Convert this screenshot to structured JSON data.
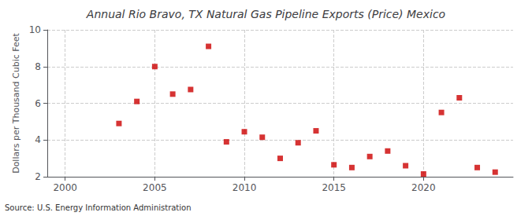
{
  "chart_data": {
    "type": "scatter",
    "title": "Annual Rio Bravo, TX Natural Gas Pipeline Exports (Price) Mexico",
    "ylabel": "Dollars per Thousand Cubic Feet",
    "source": "Source: U.S. Energy Information Administration",
    "x": [
      2003,
      2004,
      2005,
      2006,
      2007,
      2008,
      2009,
      2010,
      2011,
      2012,
      2013,
      2014,
      2015,
      2016,
      2017,
      2018,
      2019,
      2020,
      2021,
      2022,
      2023,
      2024
    ],
    "values": [
      4.9,
      6.1,
      8.0,
      6.5,
      6.75,
      9.1,
      3.9,
      4.45,
      4.15,
      3.0,
      3.85,
      4.5,
      2.65,
      2.5,
      3.1,
      3.4,
      2.6,
      2.15,
      5.5,
      6.3,
      2.5,
      2.25
    ],
    "color": "#cc0000",
    "marker": "square",
    "xlim": [
      1999,
      2025
    ],
    "xticks": [
      2000,
      2005,
      2010,
      2015,
      2020
    ],
    "ylim": [
      2,
      10
    ],
    "yticks": [
      2,
      4,
      6,
      8,
      10
    ],
    "grid": true
  }
}
